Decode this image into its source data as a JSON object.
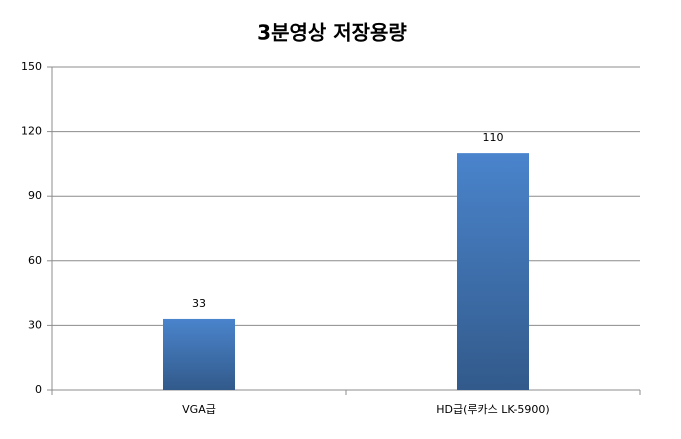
{
  "chart_data": {
    "type": "bar",
    "title": "3분영상 저장용량",
    "categories": [
      "VGA급",
      "HD급(루카스 LK-5900)"
    ],
    "values": [
      33,
      110
    ],
    "color": "#4a84cc",
    "ylim": [
      0,
      150
    ],
    "yticks": [
      0,
      30,
      60,
      90,
      120,
      150
    ],
    "grid": true
  }
}
